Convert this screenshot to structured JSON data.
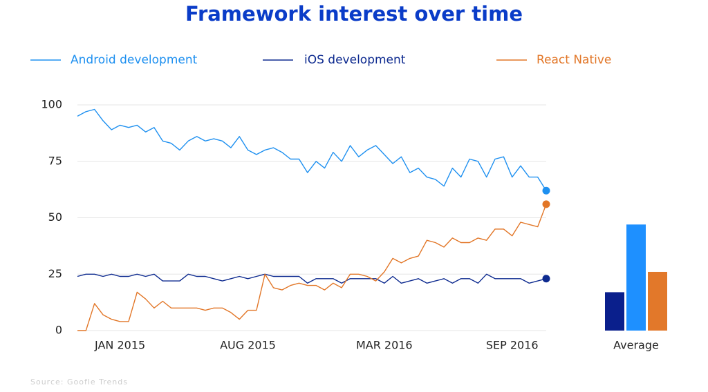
{
  "chart_data": [
    {
      "type": "line",
      "title": "Framework interest over time",
      "categories": [
        null,
        null,
        null,
        null,
        null,
        "JAN 2015",
        null,
        null,
        null,
        null,
        null,
        null,
        null,
        null,
        null,
        null,
        null,
        null,
        null,
        null,
        "AUG 2015",
        null,
        null,
        null,
        null,
        null,
        null,
        null,
        null,
        null,
        null,
        null,
        null,
        null,
        null,
        null,
        "MAR 2016",
        null,
        null,
        null,
        null,
        null,
        null,
        null,
        null,
        null,
        null,
        null,
        null,
        null,
        null,
        "SEP 2016",
        null,
        null,
        null,
        null
      ],
      "series": [
        {
          "name": "Android development",
          "color": "#1e90f0",
          "values": [
            95,
            97,
            98,
            93,
            89,
            91,
            90,
            91,
            88,
            90,
            84,
            83,
            80,
            84,
            86,
            84,
            85,
            84,
            81,
            86,
            80,
            78,
            80,
            81,
            79,
            76,
            76,
            70,
            75,
            72,
            79,
            75,
            82,
            77,
            80,
            82,
            78,
            74,
            77,
            70,
            72,
            68,
            67,
            64,
            72,
            68,
            76,
            75,
            68,
            76,
            77,
            68,
            73,
            68,
            68,
            62
          ]
        },
        {
          "name": "iOS development",
          "color": "#0d2a8f",
          "values": [
            24,
            25,
            25,
            24,
            25,
            24,
            24,
            25,
            24,
            25,
            22,
            22,
            22,
            25,
            24,
            24,
            23,
            22,
            23,
            24,
            23,
            24,
            25,
            24,
            24,
            24,
            24,
            21,
            23,
            23,
            23,
            21,
            23,
            23,
            23,
            23,
            21,
            24,
            21,
            22,
            23,
            21,
            22,
            23,
            21,
            23,
            23,
            21,
            25,
            23,
            23,
            23,
            23,
            21,
            22,
            23
          ]
        },
        {
          "name": "React Native",
          "color": "#e27627",
          "values": [
            0,
            0,
            12,
            7,
            5,
            4,
            4,
            17,
            14,
            10,
            13,
            10,
            10,
            10,
            10,
            9,
            10,
            10,
            8,
            5,
            9,
            9,
            25,
            19,
            18,
            20,
            21,
            20,
            20,
            18,
            21,
            19,
            25,
            25,
            24,
            22,
            26,
            32,
            30,
            32,
            33,
            40,
            39,
            37,
            41,
            39,
            39,
            41,
            40,
            45,
            45,
            42,
            48,
            47,
            46,
            56
          ]
        }
      ],
      "ylim": [
        0,
        100
      ],
      "yticks": [
        0,
        25,
        50,
        75,
        100
      ],
      "grid": true
    },
    {
      "type": "bar",
      "categories": [
        "Average"
      ],
      "series": [
        {
          "color": "#0a1f8c",
          "values": [
            17
          ]
        },
        {
          "color": "#1e90ff",
          "values": [
            47
          ]
        },
        {
          "color": "#e2782a",
          "values": [
            26
          ]
        }
      ],
      "ylim": [
        0,
        100
      ]
    }
  ],
  "source": "Source: Goofle Trends"
}
